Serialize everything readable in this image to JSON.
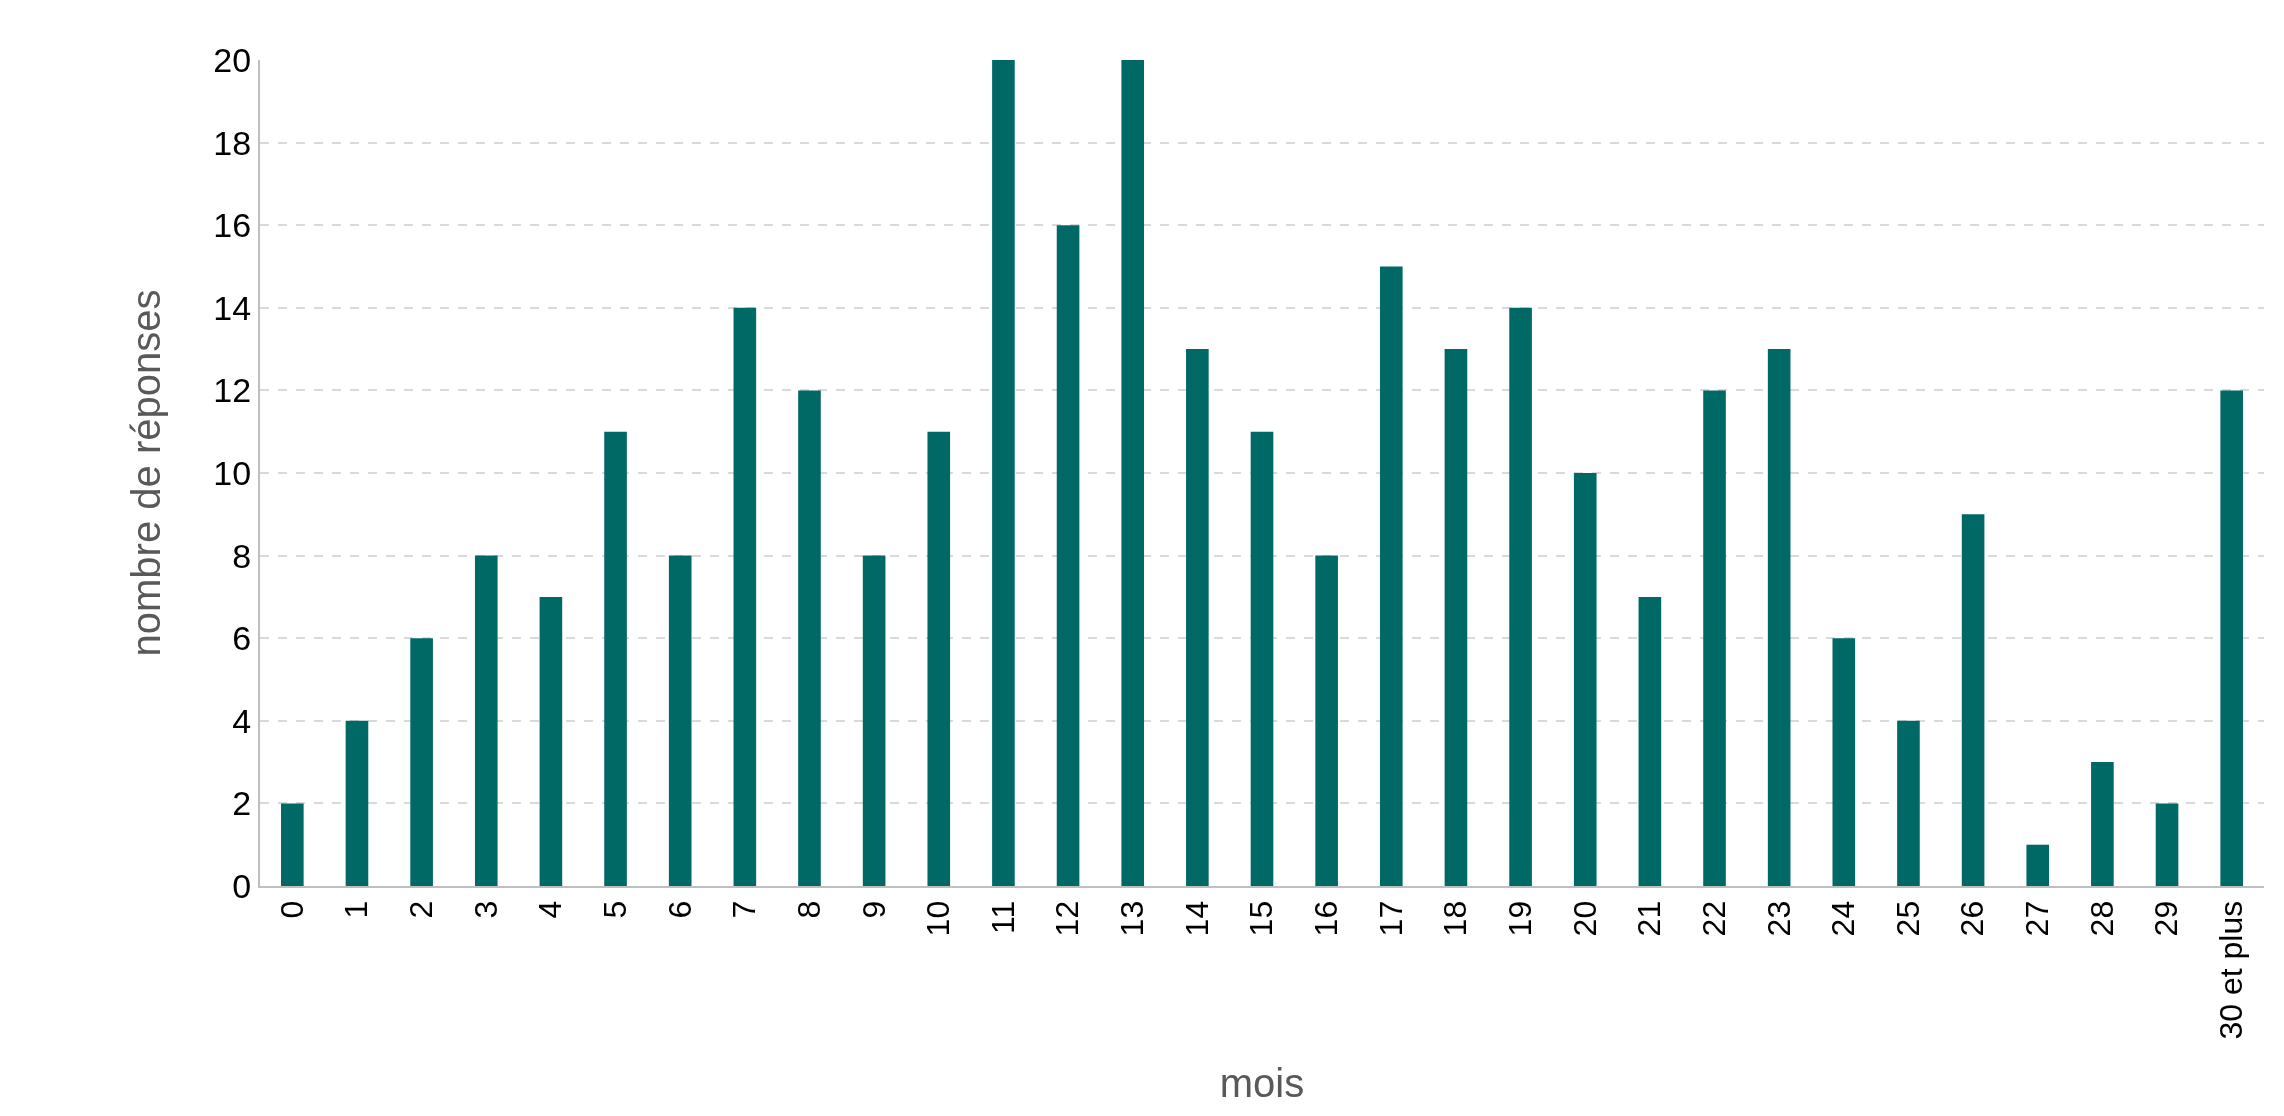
{
  "chart_data": {
    "type": "bar",
    "xlabel": "mois",
    "ylabel": "nombre de réponses",
    "categories": [
      "0",
      "1",
      "2",
      "3",
      "4",
      "5",
      "6",
      "7",
      "8",
      "9",
      "10",
      "11",
      "12",
      "13",
      "14",
      "15",
      "16",
      "17",
      "18",
      "19",
      "20",
      "21",
      "22",
      "23",
      "24",
      "25",
      "26",
      "27",
      "28",
      "29",
      "30 et plus"
    ],
    "values": [
      2,
      4,
      6,
      8,
      7,
      11,
      8,
      14,
      12,
      8,
      11,
      20,
      16,
      20,
      13,
      11,
      8,
      15,
      13,
      14,
      10,
      7,
      12,
      13,
      6,
      4,
      9,
      1,
      3,
      2,
      12
    ],
    "color": "#006966",
    "ylim": [
      0,
      20
    ],
    "yticks": [
      0,
      2,
      4,
      6,
      8,
      10,
      12,
      14,
      16,
      18,
      20
    ],
    "grid": "y"
  }
}
